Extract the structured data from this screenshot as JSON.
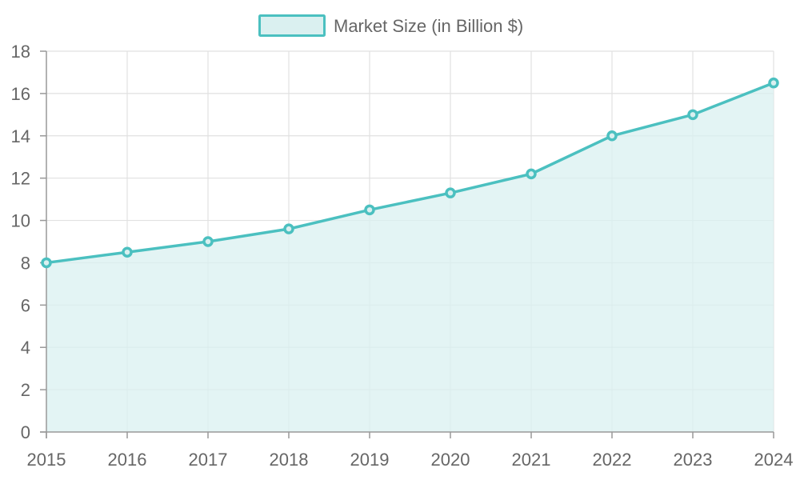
{
  "chart_data": {
    "type": "area",
    "x": [
      "2015",
      "2016",
      "2017",
      "2018",
      "2019",
      "2020",
      "2021",
      "2022",
      "2023",
      "2024"
    ],
    "series": [
      {
        "name": "Market Size (in Billion $)",
        "values": [
          8.0,
          8.5,
          9.0,
          9.6,
          10.5,
          11.3,
          12.2,
          14.0,
          15.0,
          16.5
        ]
      }
    ],
    "ylim": [
      0,
      18
    ],
    "yticks": [
      0,
      2,
      4,
      6,
      8,
      10,
      12,
      14,
      16,
      18
    ],
    "grid": true,
    "legend_position": "top-center",
    "colors": {
      "line": "#4bc0c0",
      "fill": "#daf0f0",
      "grid": "#e1e1e1",
      "axis": "#999999",
      "text": "#666666"
    }
  }
}
